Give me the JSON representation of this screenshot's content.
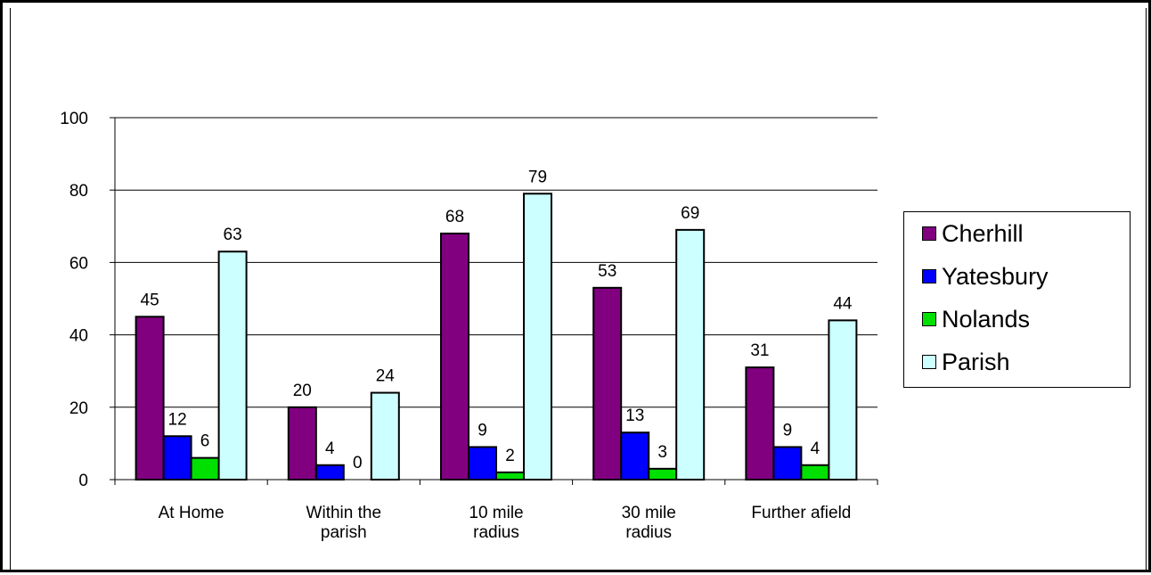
{
  "chart_data": {
    "type": "bar",
    "title": "",
    "xlabel": "",
    "ylabel": "",
    "ylim": [
      0,
      100
    ],
    "yticks": [
      0,
      20,
      40,
      60,
      80,
      100
    ],
    "grid": true,
    "legend_position": "right",
    "categories": [
      [
        "At Home"
      ],
      [
        "Within the",
        "parish"
      ],
      [
        "10 mile",
        "radius"
      ],
      [
        "30 mile",
        "radius"
      ],
      [
        "Further afield"
      ]
    ],
    "series": [
      {
        "name": "Cherhill",
        "color": "#800080",
        "values": [
          45,
          20,
          68,
          53,
          31
        ]
      },
      {
        "name": "Yatesbury",
        "color": "#0000ff",
        "values": [
          12,
          4,
          9,
          13,
          9
        ]
      },
      {
        "name": "Nolands",
        "color": "#00e000",
        "values": [
          6,
          0,
          2,
          3,
          4
        ]
      },
      {
        "name": "Parish",
        "color": "#ccffff",
        "values": [
          63,
          24,
          79,
          69,
          44
        ]
      }
    ]
  }
}
